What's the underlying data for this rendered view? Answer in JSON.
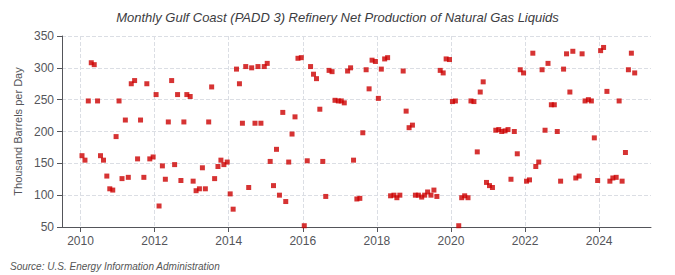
{
  "chart_data": {
    "type": "scatter",
    "title": "Monthly Gulf Coast (PADD 3) Refinery Net Production of Natural Gas Liquids",
    "y_label": "Thousand Barrels per Day",
    "annotations": [
      "Source: U.S. Energy Information Administration"
    ],
    "color": "#cc0000",
    "marker": "square",
    "grid": true,
    "xlim": [
      2009.5,
      2025.4
    ],
    "xticks": [
      2010,
      2012,
      2014,
      2016,
      2018,
      2020,
      2022,
      2024
    ],
    "ylim": [
      50,
      350
    ],
    "yticks": [
      50,
      100,
      150,
      200,
      250,
      300,
      350
    ],
    "x": [
      2010.04,
      2010.12,
      2010.21,
      2010.29,
      2010.37,
      2010.46,
      2010.54,
      2010.62,
      2010.71,
      2010.79,
      2010.87,
      2010.96,
      2011.04,
      2011.12,
      2011.21,
      2011.29,
      2011.37,
      2011.46,
      2011.54,
      2011.62,
      2011.71,
      2011.79,
      2011.87,
      2011.96,
      2012.04,
      2012.12,
      2012.21,
      2012.29,
      2012.37,
      2012.46,
      2012.54,
      2012.62,
      2012.71,
      2012.79,
      2012.87,
      2012.96,
      2013.04,
      2013.12,
      2013.21,
      2013.29,
      2013.37,
      2013.46,
      2013.54,
      2013.62,
      2013.71,
      2013.79,
      2013.87,
      2013.96,
      2014.04,
      2014.12,
      2014.21,
      2014.29,
      2014.37,
      2014.46,
      2014.54,
      2014.62,
      2014.71,
      2014.79,
      2014.87,
      2014.96,
      2015.04,
      2015.12,
      2015.21,
      2015.29,
      2015.37,
      2015.46,
      2015.54,
      2015.62,
      2015.71,
      2015.79,
      2015.87,
      2015.96,
      2016.04,
      2016.12,
      2016.21,
      2016.29,
      2016.37,
      2016.46,
      2016.54,
      2016.62,
      2016.71,
      2016.79,
      2016.87,
      2016.96,
      2017.04,
      2017.12,
      2017.21,
      2017.29,
      2017.37,
      2017.46,
      2017.54,
      2017.62,
      2017.71,
      2017.79,
      2017.87,
      2017.96,
      2018.04,
      2018.12,
      2018.21,
      2018.29,
      2018.37,
      2018.46,
      2018.54,
      2018.62,
      2018.71,
      2018.79,
      2018.87,
      2018.96,
      2019.04,
      2019.12,
      2019.21,
      2019.29,
      2019.37,
      2019.46,
      2019.54,
      2019.62,
      2019.71,
      2019.79,
      2019.87,
      2019.96,
      2020.04,
      2020.12,
      2020.21,
      2020.29,
      2020.37,
      2020.46,
      2020.54,
      2020.62,
      2020.71,
      2020.79,
      2020.87,
      2020.96,
      2021.04,
      2021.12,
      2021.21,
      2021.29,
      2021.37,
      2021.46,
      2021.54,
      2021.62,
      2021.71,
      2021.79,
      2021.87,
      2021.96,
      2022.04,
      2022.12,
      2022.21,
      2022.29,
      2022.37,
      2022.46,
      2022.54,
      2022.62,
      2022.71,
      2022.79,
      2022.87,
      2022.96,
      2023.04,
      2023.12,
      2023.21,
      2023.29,
      2023.37,
      2023.46,
      2023.54,
      2023.62,
      2023.71,
      2023.79,
      2023.87,
      2023.96,
      2024.04,
      2024.12,
      2024.21,
      2024.29,
      2024.37,
      2024.46,
      2024.54,
      2024.62,
      2024.71,
      2024.79,
      2024.87,
      2024.96
    ],
    "values": [
      162,
      155,
      248,
      308,
      305,
      248,
      162,
      155,
      130,
      110,
      108,
      192,
      248,
      126,
      218,
      128,
      275,
      280,
      157,
      218,
      128,
      275,
      157,
      160,
      258,
      83,
      146,
      125,
      215,
      280,
      148,
      258,
      123,
      215,
      258,
      255,
      122,
      107,
      110,
      143,
      110,
      215,
      270,
      126,
      145,
      155,
      148,
      152,
      102,
      78,
      298,
      275,
      213,
      302,
      112,
      300,
      213,
      302,
      213,
      302,
      307,
      153,
      115,
      172,
      100,
      230,
      90,
      152,
      196,
      223,
      315,
      316,
      52,
      154,
      302,
      290,
      283,
      235,
      153,
      98,
      296,
      294,
      249,
      248,
      248,
      245,
      295,
      300,
      155,
      94,
      95,
      198,
      297,
      267,
      312,
      310,
      252,
      298,
      314,
      316,
      99,
      100,
      96,
      100,
      295,
      232,
      206,
      210,
      100,
      100,
      97,
      100,
      105,
      100,
      108,
      98,
      296,
      292,
      314,
      313,
      247,
      248,
      52,
      96,
      99,
      96,
      248,
      247,
      168,
      262,
      278,
      120,
      115,
      112,
      202,
      203,
      200,
      201,
      203,
      125,
      200,
      165,
      297,
      292,
      122,
      124,
      323,
      145,
      152,
      297,
      202,
      307,
      242,
      242,
      200,
      122,
      298,
      322,
      262,
      326,
      127,
      130,
      322,
      248,
      250,
      248,
      190,
      123,
      327,
      332,
      263,
      122,
      127,
      128,
      248,
      122,
      167,
      297,
      323,
      292
    ]
  }
}
